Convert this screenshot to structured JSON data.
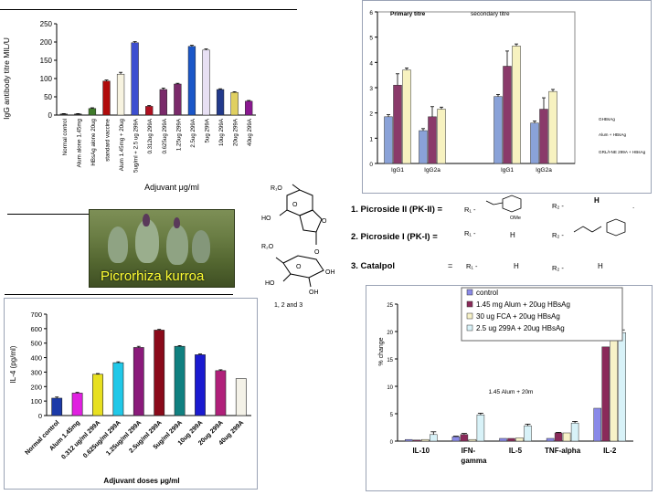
{
  "photo": {
    "caption": "Picrorhiza kurroa"
  },
  "chem": {
    "structure_caption": "1, 2 and 3",
    "r1": "R₁O",
    "r2": "R₂O",
    "ho1": "HO",
    "ho2": "HO",
    "oh1": "OH",
    "oh2": "OH",
    "o_labels": [
      "O",
      "O",
      "O",
      "O"
    ],
    "rows": [
      {
        "label": "1.  Picroside II (PK-II) = ",
        "r1": "R₁ -",
        "r2": "R₂ -",
        "r2val": "H",
        "sub": "OMe"
      },
      {
        "label": "2.  Picroside I (PK-I) =",
        "r1": "R₁ -",
        "r1val": "H",
        "r2": "R₂ -"
      },
      {
        "label": "3.  Catalpol",
        "eq": "=",
        "r1": "R₁ -",
        "r1val": "H",
        "r2": "R₂ -",
        "r2val": "H"
      }
    ],
    "dot": "."
  },
  "chart_data": [
    {
      "type": "bar",
      "ylabel": "IgG antibody titre MIL/U",
      "xlabel": "Adjuvant μg/ml",
      "ylim": [
        0,
        250
      ],
      "yticks": [
        "0",
        "50",
        "100",
        "150",
        "200",
        "250"
      ],
      "categories": [
        "Normal control",
        "Alum alone 1.45mg",
        "HBsAg alone 20ug",
        "standard vaccine",
        "Alum 1.45mg + 20ug",
        "5ug/ml + 2.5 ug 299A",
        "0.312ug 299A",
        "0.625ug 299A",
        "1.25ug 299A",
        "2.5ug 299A",
        "5ug 299A",
        "10ug 299A",
        "20ug 299A",
        "40ug 299A"
      ],
      "values": [
        3,
        3,
        18,
        93,
        112,
        198,
        24,
        70,
        85,
        188,
        178,
        70,
        62,
        38
      ],
      "errors": [
        1,
        1,
        2,
        3,
        5,
        3,
        2,
        4,
        2,
        3,
        3,
        2,
        2,
        2
      ],
      "colors": [
        "#333333",
        "#2b2b2b",
        "#3f7a2a",
        "#b00c0c",
        "#f7f3e0",
        "#3d4fd0",
        "#b01020",
        "#7a2a6a",
        "#7a2a6a",
        "#1a56c8",
        "#e8e0f4",
        "#223a8c",
        "#e0d060",
        "#8a1890"
      ]
    },
    {
      "type": "bar",
      "ylim": [
        0,
        6
      ],
      "yticks": [
        "0",
        "1",
        "2",
        "3",
        "4",
        "5",
        "6"
      ],
      "group_titles": [
        "Primary titre",
        "secondary titre"
      ],
      "categories": [
        "IgG1",
        "IgG2a",
        "IgG1",
        "IgG2a"
      ],
      "series": [
        {
          "name": "GHBsAg",
          "color": "#8aa2d8",
          "values": [
            1.85,
            1.3,
            2.65,
            1.6
          ],
          "errors": [
            0.08,
            0.08,
            0.08,
            0.08
          ]
        },
        {
          "name": "Alum + HBsAg",
          "color": "#8a3a6a",
          "values": [
            3.1,
            1.85,
            3.85,
            2.15
          ],
          "errors": [
            0.45,
            0.4,
            0.6,
            0.45
          ]
        },
        {
          "name": "GRL/I-NE 299A + HBsAg",
          "color": "#f7f2c0",
          "values": [
            3.7,
            2.15,
            4.65,
            2.85
          ],
          "errors": [
            0.08,
            0.08,
            0.08,
            0.08
          ]
        }
      ]
    },
    {
      "type": "bar",
      "ylabel": "IL-4 (pg/ml)",
      "xlabel": "Adjuvant doses μg/ml",
      "ylim": [
        0,
        700
      ],
      "yticks": [
        "0",
        "100",
        "200",
        "300",
        "400",
        "500",
        "600",
        "700"
      ],
      "categories": [
        "Normal control",
        "Alum 1.45mg",
        "0.312 ug/ml 299A",
        "0.625ug/ml 299A",
        "1.25ug/ml 299A",
        "2.5ug/ml 299A",
        "5ug/ml 299A",
        "10ug 299A",
        "20ug 299A",
        "40ug 299A"
      ],
      "values": [
        120,
        155,
        285,
        365,
        470,
        590,
        478,
        420,
        310,
        255
      ],
      "errors": [
        8,
        5,
        5,
        6,
        8,
        5,
        5,
        5,
        6,
        0
      ],
      "colors": [
        "#1c3aa8",
        "#e020e0",
        "#e8e020",
        "#20c8e8",
        "#8a1a7a",
        "#8a0a1a",
        "#108080",
        "#1a1ad0",
        "#b0207a",
        "#f4f2e8"
      ]
    },
    {
      "type": "bar",
      "ylabel": "% change",
      "ylim": [
        0,
        25
      ],
      "yticks": [
        "0",
        "5",
        "10",
        "15",
        "20",
        "25"
      ],
      "annotation": "1.45 Alum + 20m",
      "categories": [
        "IL-10",
        "IFN-\ngamma",
        "IL-5",
        "TNF-alpha",
        "IL-2"
      ],
      "category_lines": [
        [
          "IL-10"
        ],
        [
          "IFN-",
          "gamma"
        ],
        [
          "IL-5"
        ],
        [
          "TNF-alpha"
        ],
        [
          "IL-2"
        ]
      ],
      "series": [
        {
          "name": "control",
          "color": "#8a8ae8",
          "values": [
            0.3,
            0.8,
            0.5,
            0.5,
            6.0
          ],
          "errors": [
            0,
            0.1,
            0,
            0,
            0
          ]
        },
        {
          "name": "1.45 mg Alum + 20ug HBsAg",
          "color": "#8a2a5a",
          "values": [
            0.2,
            1.2,
            0.5,
            1.5,
            17.2
          ],
          "errors": [
            0,
            0.2,
            0,
            0.1,
            0
          ]
        },
        {
          "name": "30 ug FCA + 20ug HBsAg",
          "color": "#f7f2c8",
          "values": [
            0.3,
            0.3,
            0.6,
            1.5,
            18.3
          ],
          "errors": [
            0,
            0,
            0,
            0,
            0.3
          ]
        },
        {
          "name": "2.5 ug 299A + 20ug HBsAg",
          "color": "#d8f2f8",
          "values": [
            1.2,
            4.8,
            2.8,
            3.3,
            19.8
          ],
          "errors": [
            0.5,
            0.3,
            0.3,
            0.3,
            0.5
          ]
        }
      ]
    }
  ]
}
